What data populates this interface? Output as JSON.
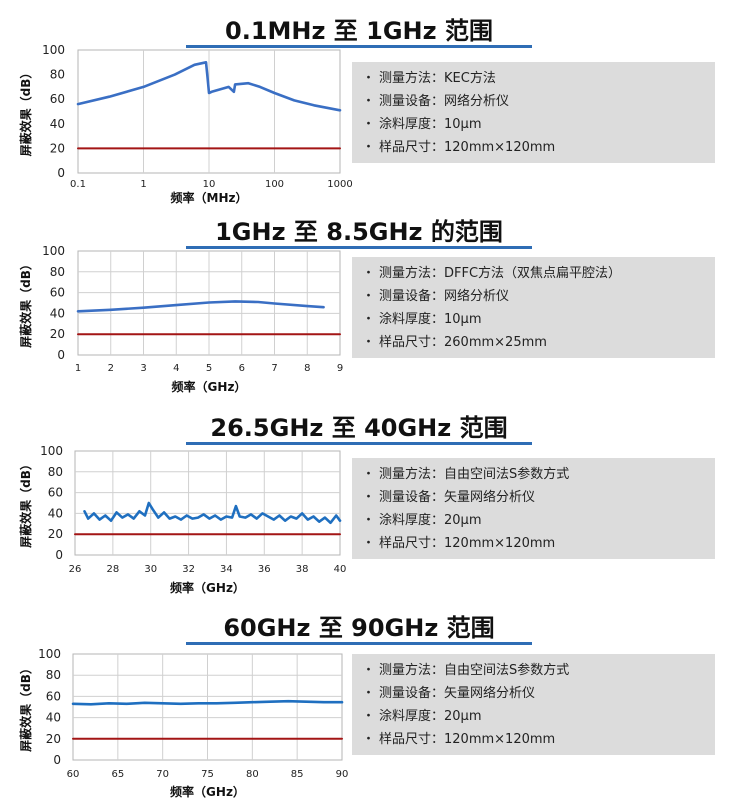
{
  "chart_data": [
    {
      "type": "line",
      "title": "0.1MHz 至 1GHz 范围",
      "xlabel": "频率（MHz）",
      "ylabel": "屏蔽效果（dB）",
      "x_scale": "log",
      "xlim": [
        0.1,
        1000
      ],
      "ylim": [
        0,
        100
      ],
      "x_ticks": [
        "0.1",
        "1",
        "10",
        "100",
        "1000"
      ],
      "y_ticks": [
        "0",
        "20",
        "40",
        "60",
        "80",
        "100"
      ],
      "grid": "vertical",
      "series": [
        {
          "values_x": [
            0.1,
            0.3,
            1,
            3,
            6,
            9,
            9.5,
            10,
            11,
            20,
            24,
            25,
            40,
            60,
            100,
            200,
            400,
            1000
          ],
          "values_y": [
            56,
            62,
            70,
            80,
            88,
            90,
            78,
            65,
            66,
            70,
            66,
            72,
            73,
            70,
            65,
            59,
            55,
            51
          ],
          "color": "#3a6fc4"
        },
        {
          "values_x": [
            0.1,
            1000
          ],
          "values_y": [
            20,
            20
          ],
          "color": "#a31515"
        }
      ],
      "notes": [
        "测量方法：KEC方法",
        "测量设备：网络分析仪",
        "涂料厚度：10μm",
        "样品尺寸：120mm×120mm"
      ]
    },
    {
      "type": "line",
      "title": "1GHz 至 8.5GHz 的范围",
      "xlabel": "频率（GHz）",
      "ylabel": "屏蔽效果（dB）",
      "xlim": [
        1,
        9
      ],
      "ylim": [
        0,
        100
      ],
      "x_ticks": [
        "1",
        "2",
        "3",
        "4",
        "5",
        "6",
        "7",
        "8",
        "9"
      ],
      "y_ticks": [
        "0",
        "20",
        "40",
        "60",
        "80",
        "100"
      ],
      "grid": "both",
      "series": [
        {
          "values_x": [
            1,
            2,
            3,
            4,
            5,
            5.8,
            6.5,
            7,
            8,
            8.5
          ],
          "values_y": [
            42,
            43.5,
            45.5,
            48,
            50.5,
            51.5,
            51,
            49.5,
            47,
            46
          ],
          "color": "#3a6fc4"
        },
        {
          "values_x": [
            1,
            9
          ],
          "values_y": [
            20,
            20
          ],
          "color": "#a31515"
        }
      ],
      "notes": [
        "测量方法：DFFC方法（双焦点扁平腔法）",
        "测量设备：网络分析仪",
        "涂料厚度：10μm",
        "样品尺寸：260mm×25mm"
      ]
    },
    {
      "type": "line",
      "title": "26.5GHz 至 40GHz 范围",
      "xlabel": "频率（GHz）",
      "ylabel": "屏蔽效果（dB）",
      "xlim": [
        26,
        40
      ],
      "ylim": [
        0,
        100
      ],
      "x_ticks": [
        "26",
        "28",
        "30",
        "32",
        "34",
        "36",
        "38",
        "40"
      ],
      "y_ticks": [
        "0",
        "20",
        "40",
        "60",
        "80",
        "100"
      ],
      "grid": "both",
      "series": [
        {
          "values_x": [
            26.5,
            26.7,
            27,
            27.3,
            27.6,
            27.9,
            28.2,
            28.5,
            28.8,
            29.1,
            29.4,
            29.7,
            29.9,
            30.1,
            30.4,
            30.7,
            31,
            31.3,
            31.6,
            31.9,
            32.2,
            32.5,
            32.8,
            33.1,
            33.4,
            33.7,
            34,
            34.3,
            34.5,
            34.7,
            35,
            35.3,
            35.6,
            35.9,
            36.2,
            36.5,
            36.8,
            37.1,
            37.4,
            37.7,
            38,
            38.3,
            38.6,
            38.9,
            39.2,
            39.5,
            39.8,
            40
          ],
          "values_y": [
            42,
            35,
            40,
            34,
            38,
            33,
            41,
            36,
            39,
            35,
            42,
            38,
            50,
            44,
            36,
            41,
            35,
            37,
            34,
            38,
            35,
            36,
            39,
            35,
            38,
            34,
            37,
            36,
            47,
            37,
            36,
            39,
            35,
            40,
            37,
            34,
            38,
            33,
            37,
            35,
            40,
            34,
            37,
            32,
            36,
            31,
            38,
            33
          ],
          "color": "#1f6fc0"
        },
        {
          "values_x": [
            26,
            40
          ],
          "values_y": [
            20,
            20
          ],
          "color": "#a31515"
        }
      ],
      "notes": [
        "测量方法：自由空间法S参数方式",
        "测量设备：矢量网络分析仪",
        "涂料厚度：20μm",
        "样品尺寸：120mm×120mm"
      ]
    },
    {
      "type": "line",
      "title": "60GHz 至 90GHz 范围",
      "xlabel": "频率（GHz）",
      "ylabel": "屏蔽效果（dB）",
      "xlim": [
        60,
        90
      ],
      "ylim": [
        0,
        100
      ],
      "x_ticks": [
        "60",
        "65",
        "70",
        "75",
        "80",
        "85",
        "90"
      ],
      "y_ticks": [
        "0",
        "20",
        "40",
        "60",
        "80",
        "100"
      ],
      "grid": "both",
      "series": [
        {
          "values_x": [
            60,
            62,
            64,
            66,
            68,
            70,
            72,
            74,
            76,
            78,
            80,
            82,
            84,
            86,
            88,
            90
          ],
          "values_y": [
            53,
            52.5,
            53.5,
            53,
            54,
            53.5,
            53,
            53.5,
            53.5,
            54,
            54.5,
            55,
            55.5,
            55,
            54.5,
            54.5
          ],
          "color": "#1f6fc0"
        },
        {
          "values_x": [
            60,
            90
          ],
          "values_y": [
            20,
            20
          ],
          "color": "#a31515"
        }
      ],
      "notes": [
        "测量方法：自由空间法S参数方式",
        "测量设备：矢量网络分析仪",
        "涂料厚度：20μm",
        "样品尺寸：120mm×120mm"
      ]
    }
  ]
}
